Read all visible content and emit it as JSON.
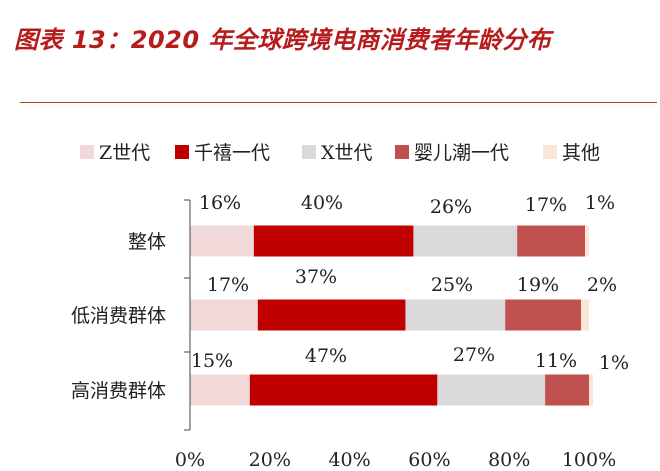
{
  "header": {
    "title": "图表 13：2020 年全球跨境电商消费者年龄分布"
  },
  "colors": {
    "accent": "#b71c1c",
    "rule": "#c0392b"
  },
  "chart_data": {
    "type": "bar",
    "orientation": "horizontal",
    "stacked": true,
    "title": "",
    "xlabel": "",
    "ylabel": "",
    "xlim": [
      0,
      100
    ],
    "x_ticks": [
      "0%",
      "20%",
      "40%",
      "60%",
      "80%",
      "100%"
    ],
    "legend_position": "top",
    "grid": false,
    "categories": [
      "整体",
      "低消费群体",
      "高消费群体"
    ],
    "series": [
      {
        "name": "Z世代",
        "color": "#f2d9d9",
        "values": [
          16,
          17,
          15
        ]
      },
      {
        "name": "千禧一代",
        "color": "#c00000",
        "values": [
          40,
          37,
          47
        ]
      },
      {
        "name": "X世代",
        "color": "#d9d9d9",
        "values": [
          26,
          25,
          27
        ]
      },
      {
        "name": "婴儿潮一代",
        "color": "#c0504d",
        "values": [
          17,
          19,
          11
        ]
      },
      {
        "name": "其他",
        "color": "#fbe5d6",
        "values": [
          1,
          2,
          1
        ]
      }
    ],
    "data_labels": [
      [
        "16%",
        "40%",
        "26%",
        "17%",
        "1%"
      ],
      [
        "17%",
        "37%",
        "25%",
        "19%",
        "2%"
      ],
      [
        "15%",
        "47%",
        "27%",
        "11%",
        "1%"
      ]
    ]
  }
}
